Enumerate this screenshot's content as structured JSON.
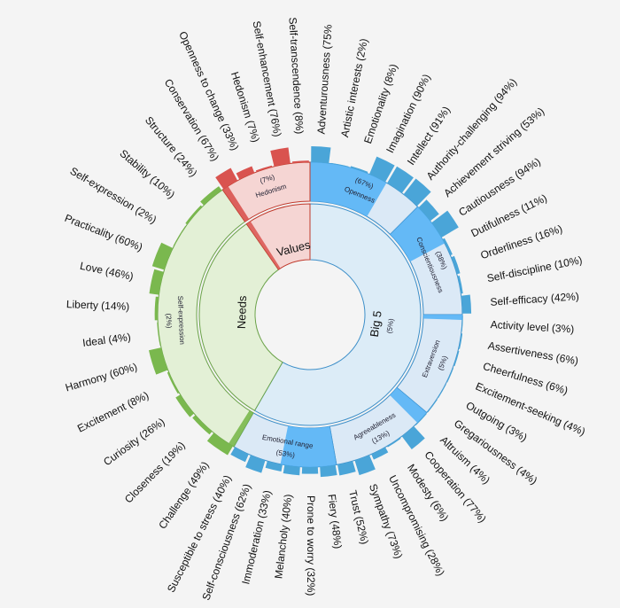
{
  "chart_data": {
    "type": "sunburst",
    "title": "",
    "colors": {
      "big5_inner": "#dcecf7",
      "big5_ring": "#dbe9f6",
      "big5_fill": "#56b4f6",
      "big5_bar": "#4aa5d8",
      "values_ring": "#f5d5d3",
      "values_fill": "#d9534f",
      "needs_ring": "#e3f0d6",
      "needs_fill": "#7ab84e",
      "stroke_blue": "#3c8ec8",
      "stroke_red": "#c0392b",
      "stroke_green": "#6ca34a"
    },
    "groups": [
      {
        "name": "Big 5",
        "label": "Big 5",
        "percent_label": "(5%)",
        "value": 5,
        "subgroups": [
          {
            "name": "Openness",
            "label": "Openness",
            "percent_label": "(67%)",
            "value": 67,
            "facets": [
              {
                "label": "Adventurousness (75%",
                "value": 75
              },
              {
                "label": "Artistic interests (2%)",
                "value": 2
              },
              {
                "label": "Emotionality (8%)",
                "value": 8
              },
              {
                "label": "Imagination (90%)",
                "value": 90
              },
              {
                "label": "Intellect (91%)",
                "value": 91
              },
              {
                "label": "Authority-challenging (94%)",
                "value": 94
              }
            ]
          },
          {
            "name": "Conscientiousness",
            "label": "Conscientiousness",
            "percent_label": "(38%)",
            "value": 38,
            "facets": [
              {
                "label": "Achievement striving (53%)",
                "value": 53
              },
              {
                "label": "Cautiousness (94%)",
                "value": 94
              },
              {
                "label": "Dutifulness (11%)",
                "value": 11
              },
              {
                "label": "Orderliness (16%)",
                "value": 16
              },
              {
                "label": "Self-discipline (10%)",
                "value": 10
              },
              {
                "label": "Self-efficacy (42%)",
                "value": 42
              }
            ]
          },
          {
            "name": "Extraversion",
            "label": "Extraversion",
            "percent_label": "(5%)",
            "value": 5,
            "facets": [
              {
                "label": "Activity level (3%)",
                "value": 3
              },
              {
                "label": "Assertiveness (6%)",
                "value": 6
              },
              {
                "label": "Cheerfulness (6%)",
                "value": 6
              },
              {
                "label": "Excitement-seeking (4%)",
                "value": 4
              },
              {
                "label": "Outgoing (3%)",
                "value": 3
              },
              {
                "label": "Gregariousness (4%)",
                "value": 4
              }
            ]
          },
          {
            "name": "Agreeableness",
            "label": "Agreeableness",
            "percent_label": "(13%)",
            "value": 13,
            "facets": [
              {
                "label": "Altruism (4%)",
                "value": 4
              },
              {
                "label": "Cooperation (77%)",
                "value": 77
              },
              {
                "label": "Modesty (6%)",
                "value": 6
              },
              {
                "label": "Uncompromising (28%)",
                "value": 28
              },
              {
                "label": "Sympathy (73%)",
                "value": 73
              },
              {
                "label": "Trust (52%)",
                "value": 52
              }
            ]
          },
          {
            "name": "Emotional range",
            "label": "Emotional range",
            "percent_label": "(53%)",
            "value": 53,
            "facets": [
              {
                "label": "Fiery (48%)",
                "value": 48
              },
              {
                "label": "Prone to worry (32%)",
                "value": 32
              },
              {
                "label": "Melancholy (40%)",
                "value": 40
              },
              {
                "label": "Immoderation (33%)",
                "value": 33
              },
              {
                "label": "Self-consciousness (62%)",
                "value": 62
              },
              {
                "label": "Susceptible to stress (40%)",
                "value": 40
              }
            ]
          }
        ]
      },
      {
        "name": "Needs",
        "label": "Needs",
        "value": 2,
        "subgroups": [
          {
            "name": "Self-expression",
            "label": "Self-expression",
            "percent_label": "(2%)",
            "value": 2,
            "facets": [
              {
                "label": "Challenge (49%)",
                "value": 49
              },
              {
                "label": "Closeness (19%)",
                "value": 19
              },
              {
                "label": "Curiosity (26%)",
                "value": 26
              },
              {
                "label": "Excitement (8%)",
                "value": 8
              },
              {
                "label": "Harmony (60%)",
                "value": 60
              },
              {
                "label": "Ideal (4%)",
                "value": 4
              },
              {
                "label": "Liberty (14%)",
                "value": 14
              },
              {
                "label": "Love (46%)",
                "value": 46
              },
              {
                "label": "Practicality (60%)",
                "value": 60
              },
              {
                "label": "Self-expression (2%)",
                "value": 2
              },
              {
                "label": "Stability (10%)",
                "value": 10
              },
              {
                "label": "Structure (24%)",
                "value": 24
              }
            ]
          }
        ]
      },
      {
        "name": "Values",
        "label": "Values",
        "value": 7,
        "subgroups": [
          {
            "name": "Hedonism",
            "label": "Hedonism",
            "percent_label": "(7%)",
            "value": 7,
            "facets": [
              {
                "label": "Conservation (67%)",
                "value": 67
              },
              {
                "label": "Openness to change (33%)",
                "value": 33
              },
              {
                "label": "Hedonism (7%)",
                "value": 7
              },
              {
                "label": "Self-enhancement (76%)",
                "value": 76
              },
              {
                "label": "Self-transcendence (8%)",
                "value": 8
              }
            ]
          }
        ]
      }
    ]
  }
}
